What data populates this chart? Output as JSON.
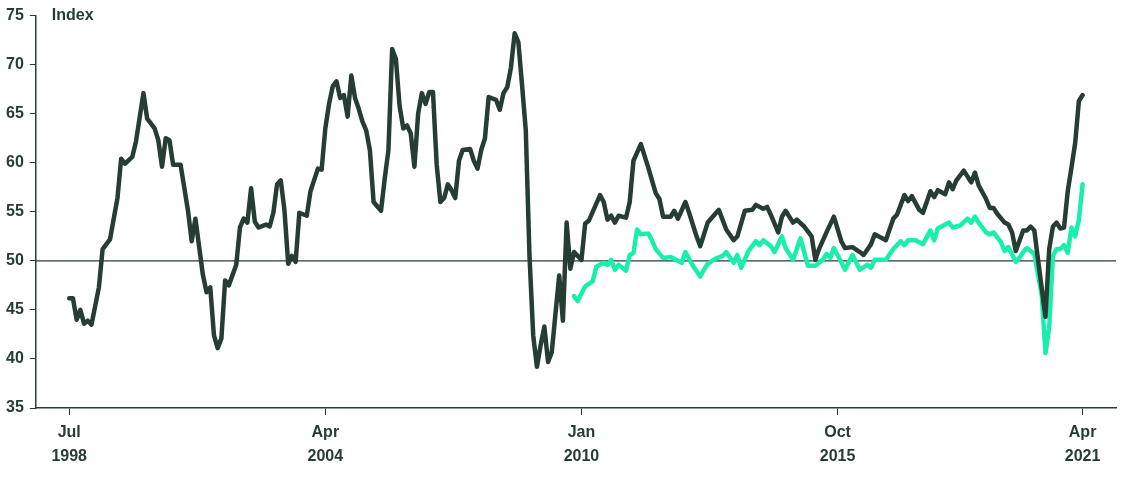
{
  "chart_data": {
    "type": "line",
    "ylabel": "Index",
    "xlim": [
      "1997-10",
      "2022-01"
    ],
    "xticks": [
      {
        "value": "1998-07",
        "label": "Jul 1998"
      },
      {
        "value": "2004-04",
        "label": "Apr 2004"
      },
      {
        "value": "2010-01",
        "label": "Jan 2010"
      },
      {
        "value": "2015-10",
        "label": "Oct 2015"
      },
      {
        "value": "2021-04",
        "label": "Apr 2021"
      }
    ],
    "ylim": [
      35,
      75
    ],
    "yticks": [
      35,
      40,
      45,
      50,
      55,
      60,
      65,
      70,
      75
    ],
    "marker": "none",
    "line_style": "solid",
    "legend": false,
    "ref_lines": [
      {
        "axis": "y",
        "value": 50,
        "color": "#263d33"
      }
    ],
    "series": [
      {
        "color": "#263d33",
        "x": [
          "1998-07",
          "1998-08",
          "1998-09",
          "1998-10",
          "1998-11",
          "1998-12",
          "1999-01",
          "1999-03",
          "1999-04",
          "1999-06",
          "1999-08",
          "1999-09",
          "1999-10",
          "1999-12",
          "2000-01",
          "2000-03",
          "2000-04",
          "2000-06",
          "2000-07",
          "2000-08",
          "2000-09",
          "2000-10",
          "2000-11",
          "2001-01",
          "2001-03",
          "2001-04",
          "2001-05",
          "2001-07",
          "2001-08",
          "2001-09",
          "2001-10",
          "2001-11",
          "2001-12",
          "2002-01",
          "2002-02",
          "2002-04",
          "2002-05",
          "2002-06",
          "2002-07",
          "2002-08",
          "2002-09",
          "2002-10",
          "2002-12",
          "2003-01",
          "2003-02",
          "2003-03",
          "2003-04",
          "2003-05",
          "2003-06",
          "2003-07",
          "2003-08",
          "2003-09",
          "2003-11",
          "2003-12",
          "2004-02",
          "2004-03",
          "2004-04",
          "2004-05",
          "2004-06",
          "2004-07",
          "2004-08",
          "2004-09",
          "2004-10",
          "2004-11",
          "2004-12",
          "2005-01",
          "2005-02",
          "2005-03",
          "2005-04",
          "2005-05",
          "2005-07",
          "2005-08",
          "2005-09",
          "2005-10",
          "2005-11",
          "2005-12",
          "2006-01",
          "2006-02",
          "2006-03",
          "2006-04",
          "2006-05",
          "2006-06",
          "2006-07",
          "2006-08",
          "2006-09",
          "2006-10",
          "2006-11",
          "2006-12",
          "2007-01",
          "2007-02",
          "2007-03",
          "2007-04",
          "2007-05",
          "2007-07",
          "2007-08",
          "2007-09",
          "2007-10",
          "2007-11",
          "2007-12",
          "2008-02",
          "2008-03",
          "2008-04",
          "2008-05",
          "2008-06",
          "2008-07",
          "2008-08",
          "2008-09",
          "2008-10",
          "2008-11",
          "2008-12",
          "2009-01",
          "2009-02",
          "2009-03",
          "2009-04",
          "2009-05",
          "2009-07",
          "2009-08",
          "2009-09",
          "2009-10",
          "2009-11",
          "2010-01",
          "2010-02",
          "2010-03",
          "2010-06",
          "2010-07",
          "2010-08",
          "2010-09",
          "2010-10",
          "2010-11",
          "2011-01",
          "2011-02",
          "2011-03",
          "2011-05",
          "2011-07",
          "2011-09",
          "2011-10",
          "2011-11",
          "2012-01",
          "2012-02",
          "2012-03",
          "2012-05",
          "2012-06",
          "2012-08",
          "2012-09",
          "2012-11",
          "2013-02",
          "2013-04",
          "2013-06",
          "2013-07",
          "2013-09",
          "2013-11",
          "2013-12",
          "2014-02",
          "2014-03",
          "2014-04",
          "2014-06",
          "2014-07",
          "2014-08",
          "2014-10",
          "2014-11",
          "2015-01",
          "2015-03",
          "2015-04",
          "2015-05",
          "2015-07",
          "2015-09",
          "2015-11",
          "2015-12",
          "2016-02",
          "2016-04",
          "2016-05",
          "2016-07",
          "2016-08",
          "2016-09",
          "2016-11",
          "2017-01",
          "2017-02",
          "2017-04",
          "2017-05",
          "2017-06",
          "2017-08",
          "2017-09",
          "2017-11",
          "2017-12",
          "2018-01",
          "2018-03",
          "2018-04",
          "2018-05",
          "2018-06",
          "2018-08",
          "2018-10",
          "2018-11",
          "2018-12",
          "2019-02",
          "2019-03",
          "2019-04",
          "2019-05",
          "2019-07",
          "2019-08",
          "2019-09",
          "2019-10",
          "2019-12",
          "2020-01",
          "2020-02",
          "2020-03",
          "2020-04",
          "2020-06",
          "2020-07",
          "2020-08",
          "2020-09",
          "2020-10",
          "2020-11",
          "2020-12",
          "2021-01",
          "2021-02",
          "2021-03",
          "2021-04"
        ],
        "values": [
          46.2,
          46.2,
          44.0,
          45.0,
          43.6,
          43.9,
          43.5,
          47.3,
          51.2,
          52.2,
          56.4,
          60.4,
          59.9,
          60.6,
          62.2,
          67.1,
          64.5,
          63.5,
          62.3,
          59.6,
          62.5,
          62.3,
          59.8,
          59.8,
          55.1,
          52.0,
          54.3,
          48.6,
          46.8,
          47.3,
          42.4,
          41.1,
          42.1,
          48.0,
          47.5,
          49.6,
          53.4,
          54.3,
          53.9,
          57.4,
          54.0,
          53.4,
          53.7,
          53.5,
          54.9,
          57.8,
          58.2,
          55.1,
          49.7,
          50.5,
          49.9,
          54.9,
          54.6,
          57.1,
          59.4,
          59.3,
          63.5,
          66.0,
          67.8,
          68.3,
          66.6,
          66.9,
          64.7,
          68.9,
          66.6,
          65.5,
          64.2,
          63.3,
          61.3,
          56.0,
          55.1,
          58.4,
          61.3,
          71.6,
          70.6,
          65.8,
          63.5,
          63.8,
          63.0,
          59.6,
          65.0,
          67.1,
          66.0,
          67.2,
          67.2,
          59.8,
          56.0,
          56.4,
          57.8,
          57.2,
          56.4,
          60.2,
          61.3,
          61.4,
          60.2,
          59.4,
          61.3,
          62.5,
          66.7,
          66.4,
          65.4,
          67.1,
          67.7,
          69.7,
          73.2,
          72.3,
          67.9,
          63.3,
          50.5,
          42.4,
          39.2,
          41.4,
          43.3,
          39.7,
          40.7,
          48.5,
          43.9,
          53.9,
          49.2,
          50.9,
          50.1,
          53.8,
          54.1,
          56.7,
          56.0,
          54.2,
          54.6,
          53.9,
          54.6,
          54.4,
          56.0,
          60.2,
          61.9,
          59.5,
          56.9,
          56.3,
          54.5,
          54.5,
          55.1,
          54.3,
          56.0,
          54.9,
          52.5,
          51.5,
          53.9,
          55.2,
          53.2,
          52.1,
          52.5,
          55.1,
          55.2,
          55.7,
          55.3,
          55.5,
          54.7,
          52.9,
          54.5,
          55.1,
          53.9,
          54.2,
          53.5,
          52.5,
          50.1,
          51.2,
          52.9,
          54.5,
          52.0,
          51.3,
          51.4,
          50.9,
          50.6,
          51.7,
          52.7,
          52.5,
          52.1,
          54.3,
          54.7,
          56.7,
          56.1,
          56.6,
          55.2,
          54.9,
          57.1,
          56.5,
          57.2,
          56.8,
          58.0,
          57.3,
          58.2,
          59.2,
          58.0,
          59.0,
          57.7,
          56.3,
          55.4,
          55.4,
          54.8,
          53.9,
          53.7,
          52.9,
          51.0,
          53.1,
          53.1,
          53.5,
          53.1,
          50.1,
          44.3,
          51.2,
          53.5,
          53.9,
          53.3,
          53.4,
          57.1,
          59.5,
          62.0,
          66.3,
          66.9
        ]
      },
      {
        "color": "#19eeac",
        "x": [
          "2009-11",
          "2009-12",
          "2010-02",
          "2010-04",
          "2010-05",
          "2010-07",
          "2010-08",
          "2010-09",
          "2010-10",
          "2010-11",
          "2011-01",
          "2011-02",
          "2011-03",
          "2011-04",
          "2011-05",
          "2011-07",
          "2011-08",
          "2011-09",
          "2011-11",
          "2012-01",
          "2012-04",
          "2012-05",
          "2012-07",
          "2012-09",
          "2012-10",
          "2012-11",
          "2013-01",
          "2013-03",
          "2013-04",
          "2013-06",
          "2013-07",
          "2013-08",
          "2013-10",
          "2013-12",
          "2014-01",
          "2014-02",
          "2014-04",
          "2014-05",
          "2014-07",
          "2014-08",
          "2014-10",
          "2014-12",
          "2015-01",
          "2015-02",
          "2015-04",
          "2015-06",
          "2015-07",
          "2015-08",
          "2015-09",
          "2015-10",
          "2015-12",
          "2016-02",
          "2016-04",
          "2016-06",
          "2016-07",
          "2016-08",
          "2016-11",
          "2017-01",
          "2017-03",
          "2017-04",
          "2017-05",
          "2017-07",
          "2017-09",
          "2017-11",
          "2017-12",
          "2018-01",
          "2018-04",
          "2018-05",
          "2018-07",
          "2018-09",
          "2018-10",
          "2018-11",
          "2018-12",
          "2019-02",
          "2019-03",
          "2019-04",
          "2019-06",
          "2019-07",
          "2019-08",
          "2019-10",
          "2019-11",
          "2019-12",
          "2020-01",
          "2020-02",
          "2020-03",
          "2020-05",
          "2020-06",
          "2020-07",
          "2020-08",
          "2020-09",
          "2020-10",
          "2020-11",
          "2020-12",
          "2021-01",
          "2021-02",
          "2021-03",
          "2021-04"
        ],
        "values": [
          46.4,
          45.9,
          47.4,
          47.9,
          49.4,
          49.8,
          49.6,
          50.1,
          49.1,
          49.6,
          49.0,
          50.6,
          50.8,
          53.2,
          52.7,
          52.8,
          52.1,
          51.2,
          50.3,
          50.4,
          49.8,
          50.9,
          49.5,
          48.4,
          49.1,
          49.7,
          50.2,
          50.5,
          50.9,
          49.8,
          50.6,
          49.3,
          51.0,
          52.0,
          51.6,
          52.1,
          51.5,
          50.9,
          52.5,
          51.3,
          50.1,
          52.3,
          50.9,
          49.5,
          49.5,
          50.1,
          50.7,
          50.3,
          51.3,
          50.6,
          49.1,
          50.6,
          49.1,
          49.6,
          49.3,
          50.1,
          50.1,
          51.2,
          52.0,
          51.6,
          52.1,
          52.1,
          51.7,
          53.1,
          52.1,
          53.3,
          53.9,
          53.4,
          53.6,
          54.3,
          53.9,
          54.5,
          53.9,
          52.9,
          52.7,
          52.9,
          51.9,
          51.0,
          51.4,
          49.9,
          50.3,
          50.9,
          51.3,
          51.0,
          50.7,
          46.5,
          40.6,
          43.2,
          50.5,
          51.2,
          51.2,
          51.6,
          50.8,
          53.4,
          52.5,
          54.2,
          57.8
        ]
      }
    ]
  }
}
